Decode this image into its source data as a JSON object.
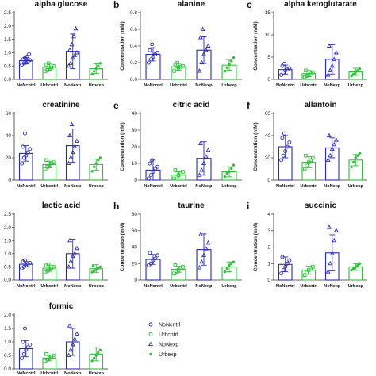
{
  "colors": {
    "blue": "#2a2ab8",
    "green": "#2fbf3a",
    "axis": "#333333"
  },
  "legend": [
    {
      "label": "NoNcntrl",
      "marker": "circle-open",
      "color": "#2a2ab8"
    },
    {
      "label": "Urbcntrl",
      "marker": "square-open",
      "color": "#2fbf3a"
    },
    {
      "label": "NoNexp",
      "marker": "triangle-open",
      "color": "#2a2ab8"
    },
    {
      "label": "Urbexp",
      "marker": "dot",
      "color": "#2fbf3a"
    }
  ],
  "chart_data": [
    {
      "type": "bar",
      "letter": "",
      "title": "alpha glucose",
      "ylabel": "",
      "ylim": [
        0,
        2.5
      ],
      "yticks": [
        0.0,
        0.5,
        1.0,
        1.5,
        2.0,
        2.5
      ],
      "ytick_labels": [
        "0.0",
        "0.5",
        "1.0",
        "1.5",
        "2.0",
        "2.5"
      ],
      "categories": [
        "NoNcntrl",
        "Urbcntrl",
        "NoNexp",
        "Urbexp"
      ],
      "values": [
        0.7,
        0.45,
        1.05,
        0.4
      ],
      "errors": [
        0.12,
        0.12,
        0.65,
        0.18
      ],
      "points": [
        [
          0.55,
          0.6,
          0.62,
          0.68,
          0.72,
          0.75,
          0.8,
          0.85,
          0.95
        ],
        [
          0.3,
          0.35,
          0.4,
          0.45,
          0.5,
          0.55,
          0.6
        ],
        [
          0.5,
          0.6,
          0.8,
          0.9,
          1.0,
          1.1,
          1.3,
          1.6,
          1.9
        ],
        [
          0.2,
          0.3,
          0.4,
          0.5,
          0.6
        ]
      ]
    },
    {
      "type": "bar",
      "letter": "b",
      "title": "alanine",
      "ylabel": "Concentration (mM)",
      "ylim": [
        0,
        0.8
      ],
      "yticks": [
        0.0,
        0.2,
        0.4,
        0.6,
        0.8
      ],
      "ytick_labels": [
        "0.0",
        "0.2",
        "0.4",
        "0.6",
        "0.8"
      ],
      "categories": [
        "NoNcntrl",
        "Urbcntrl",
        "NoNexp",
        "Urbexp"
      ],
      "values": [
        0.3,
        0.15,
        0.35,
        0.17
      ],
      "errors": [
        0.08,
        0.04,
        0.16,
        0.06
      ],
      "points": [
        [
          0.2,
          0.24,
          0.27,
          0.3,
          0.32,
          0.35,
          0.42
        ],
        [
          0.1,
          0.12,
          0.14,
          0.15,
          0.16,
          0.18,
          0.2
        ],
        [
          0.1,
          0.2,
          0.3,
          0.35,
          0.4,
          0.5,
          0.6
        ],
        [
          0.1,
          0.14,
          0.18,
          0.22,
          0.26
        ]
      ]
    },
    {
      "type": "bar",
      "letter": "c",
      "title": "alpha ketoglutarate",
      "ylabel": "Concentration (mM)",
      "ylim": [
        0,
        15
      ],
      "yticks": [
        0,
        5,
        10,
        15
      ],
      "ytick_labels": [
        "0",
        "5",
        "10",
        "15"
      ],
      "categories": [
        "NoNcntrl",
        "Urbcntrl",
        "NoNexp",
        "Urbexp"
      ],
      "values": [
        2.2,
        1.3,
        4.5,
        1.7
      ],
      "errors": [
        1.0,
        0.7,
        3.3,
        0.8
      ],
      "points": [
        [
          1.0,
          1.5,
          2.0,
          2.2,
          2.5,
          3.0,
          3.5
        ],
        [
          0.5,
          0.8,
          1.0,
          1.3,
          1.6,
          2.0
        ],
        [
          1.0,
          2.0,
          3.0,
          4.5,
          6.0,
          7.5
        ],
        [
          0.8,
          1.2,
          1.6,
          2.0,
          2.4
        ]
      ]
    },
    {
      "type": "bar",
      "letter": "",
      "title": "creatinine",
      "ylabel": "",
      "ylim": [
        0,
        60
      ],
      "yticks": [
        0,
        20,
        40,
        60
      ],
      "ytick_labels": [
        "0",
        "20",
        "40",
        "60"
      ],
      "categories": [
        "NoNcntrl",
        "Urbcntrl",
        "NoNexp",
        "Urbexp"
      ],
      "values": [
        24,
        14,
        31,
        14
      ],
      "errors": [
        7,
        3,
        15,
        5
      ],
      "points": [
        [
          15,
          20,
          22,
          25,
          28,
          30,
          42
        ],
        [
          10,
          12,
          14,
          15,
          16,
          18
        ],
        [
          15,
          20,
          25,
          30,
          35,
          40,
          50
        ],
        [
          8,
          12,
          15,
          18,
          20
        ]
      ]
    },
    {
      "type": "bar",
      "letter": "e",
      "title": "citric acid",
      "ylabel": "Concentration (mM)",
      "ylim": [
        0,
        40
      ],
      "yticks": [
        0,
        10,
        20,
        30,
        40
      ],
      "ytick_labels": [
        "0",
        "10",
        "20",
        "30",
        "40"
      ],
      "categories": [
        "NoNcntrl",
        "Urbcntrl",
        "NoNexp",
        "Urbexp"
      ],
      "values": [
        6,
        3,
        13,
        5
      ],
      "errors": [
        6,
        2,
        10,
        3
      ],
      "points": [
        [
          1,
          3,
          5,
          7,
          8,
          10,
          12
        ],
        [
          1,
          2,
          3,
          4,
          5,
          6
        ],
        [
          3,
          6,
          10,
          14,
          18,
          22
        ],
        [
          2,
          4,
          5,
          7,
          9
        ]
      ]
    },
    {
      "type": "bar",
      "letter": "f",
      "title": "allantoin",
      "ylabel": "Concentration (mM)",
      "ylim": [
        0,
        60
      ],
      "yticks": [
        0,
        20,
        40,
        60
      ],
      "ytick_labels": [
        "0",
        "20",
        "40",
        "60"
      ],
      "categories": [
        "NoNcntrl",
        "Urbcntrl",
        "NoNexp",
        "Urbexp"
      ],
      "values": [
        30,
        16,
        29,
        18
      ],
      "errors": [
        10,
        5,
        9,
        5
      ],
      "points": [
        [
          18,
          22,
          26,
          30,
          34,
          38,
          42
        ],
        [
          10,
          13,
          16,
          18,
          20,
          22
        ],
        [
          18,
          22,
          28,
          32,
          36,
          40
        ],
        [
          12,
          16,
          20,
          22,
          24
        ]
      ]
    },
    {
      "type": "bar",
      "letter": "",
      "title": "lactic acid",
      "ylabel": "",
      "ylim": [
        0,
        2.5
      ],
      "yticks": [
        0.0,
        0.5,
        1.0,
        1.5,
        2.0,
        2.5
      ],
      "ytick_labels": [
        "0.0",
        "0.5",
        "1.0",
        "1.5",
        "2.0",
        "2.5"
      ],
      "categories": [
        "NoNcntrl",
        "Urbcntrl",
        "NoNexp",
        "Urbexp"
      ],
      "values": [
        0.6,
        0.45,
        1.0,
        0.43
      ],
      "errors": [
        0.1,
        0.12,
        0.55,
        0.15
      ],
      "points": [
        [
          0.45,
          0.5,
          0.55,
          0.6,
          0.65,
          0.7,
          0.75
        ],
        [
          0.3,
          0.35,
          0.4,
          0.45,
          0.5,
          0.55,
          0.6
        ],
        [
          0.5,
          0.7,
          0.9,
          1.0,
          1.2,
          1.5
        ],
        [
          0.3,
          0.35,
          0.4,
          0.45,
          0.5,
          0.55
        ]
      ]
    },
    {
      "type": "bar",
      "letter": "h",
      "title": "taurine",
      "ylabel": "Concentration (mM)",
      "ylim": [
        0,
        80
      ],
      "yticks": [
        0,
        20,
        40,
        60,
        80
      ],
      "ytick_labels": [
        "0",
        "20",
        "40",
        "60",
        "80"
      ],
      "categories": [
        "NoNcntrl",
        "Urbcntrl",
        "NoNexp",
        "Urbexp"
      ],
      "values": [
        25,
        13,
        37,
        16
      ],
      "errors": [
        6,
        4,
        19,
        6
      ],
      "points": [
        [
          18,
          20,
          24,
          26,
          30,
          33
        ],
        [
          8,
          10,
          12,
          14,
          16,
          18
        ],
        [
          15,
          22,
          30,
          38,
          45,
          55
        ],
        [
          10,
          14,
          18,
          20,
          22
        ]
      ]
    },
    {
      "type": "bar",
      "letter": "i",
      "title": "succinic",
      "ylabel": "Concentration (mM)",
      "ylim": [
        0,
        4
      ],
      "yticks": [
        0,
        1,
        2,
        3,
        4
      ],
      "ytick_labels": [
        "0",
        "1",
        "2",
        "3",
        "4"
      ],
      "categories": [
        "NoNcntrl",
        "Urbcntrl",
        "NoNexp",
        "Urbexp"
      ],
      "values": [
        0.95,
        0.6,
        1.65,
        0.8
      ],
      "errors": [
        0.45,
        0.25,
        1.1,
        0.2
      ],
      "points": [
        [
          0.4,
          0.6,
          0.8,
          1.0,
          1.2,
          1.4
        ],
        [
          0.3,
          0.45,
          0.6,
          0.7,
          0.8
        ],
        [
          0.5,
          1.0,
          1.6,
          2.4,
          3.0,
          3.2
        ],
        [
          0.6,
          0.7,
          0.8,
          0.9,
          1.0
        ]
      ]
    },
    {
      "type": "bar",
      "letter": "",
      "title": "formic",
      "ylabel": "",
      "ylim": [
        0,
        2.0
      ],
      "yticks": [
        0.0,
        0.5,
        1.0,
        1.5,
        2.0
      ],
      "ytick_labels": [
        "0.0",
        "0.5",
        "1.0",
        "1.5",
        "2.0"
      ],
      "categories": [
        "NoNcntrl",
        "Urbcntrl",
        "NoNexp",
        "Urbexp"
      ],
      "values": [
        0.75,
        0.4,
        1.0,
        0.55
      ],
      "errors": [
        0.3,
        0.1,
        0.5,
        0.25
      ],
      "points": [
        [
          0.4,
          0.55,
          0.7,
          0.8,
          0.9,
          1.0,
          1.5
        ],
        [
          0.3,
          0.35,
          0.4,
          0.45,
          0.5,
          0.55
        ],
        [
          0.5,
          0.7,
          0.9,
          1.1,
          1.3,
          1.6
        ],
        [
          0.3,
          0.4,
          0.5,
          0.6,
          0.7
        ]
      ]
    }
  ]
}
